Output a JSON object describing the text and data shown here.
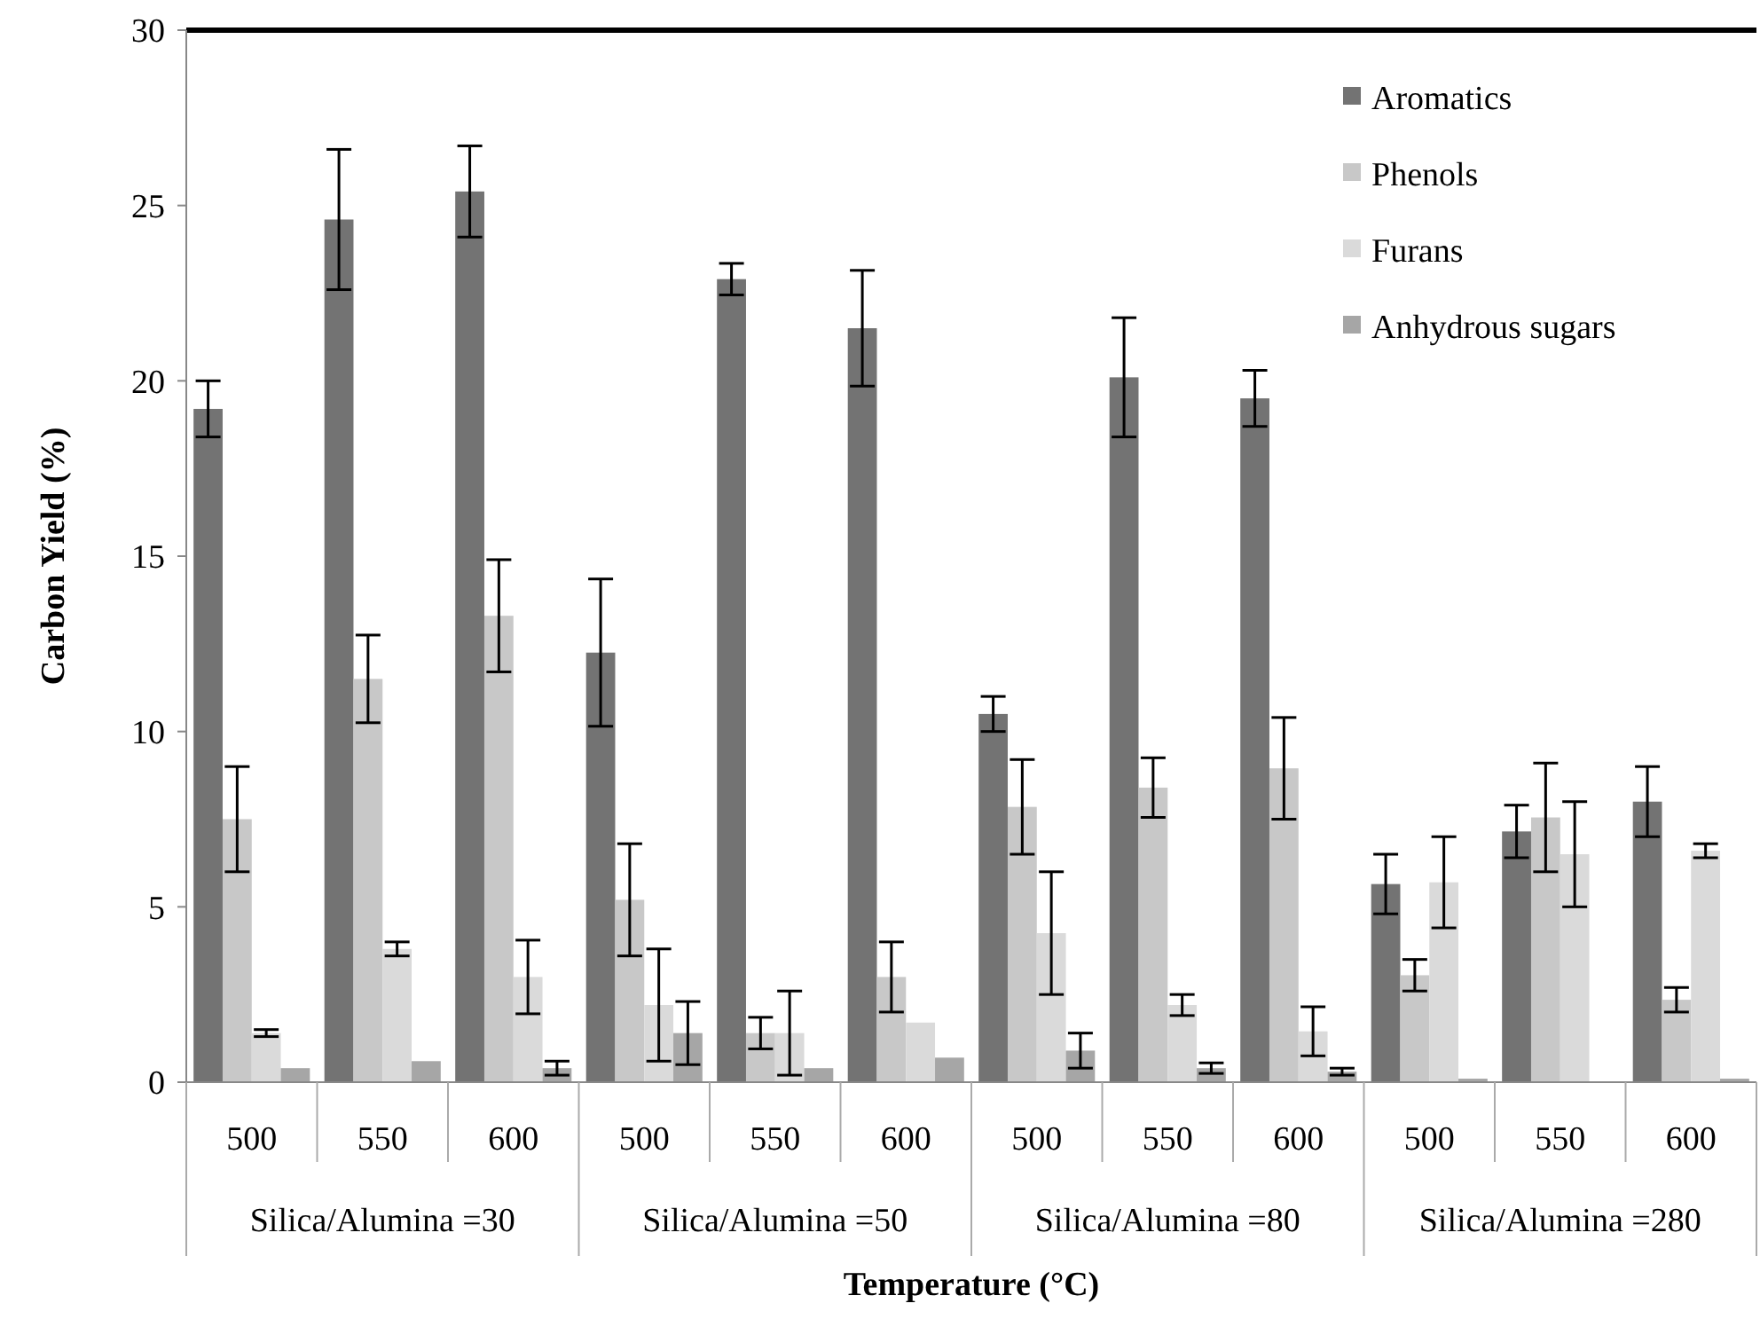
{
  "chart_data": {
    "type": "bar",
    "xlabel": "Temperature (°C)",
    "ylabel": "Carbon Yield (%)",
    "categories": [
      "500",
      "550",
      "600",
      "500",
      "550",
      "600",
      "500",
      "550",
      "600",
      "500",
      "550",
      "600"
    ],
    "annotations": [
      "Silica/Alumina =30",
      "Silica/Alumina =50",
      "Silica/Alumina =80",
      "Silica/Alumina =280"
    ],
    "series": [
      {
        "name": "Aromatics",
        "color": "#737373",
        "values": [
          19.2,
          24.6,
          25.4,
          12.25,
          22.9,
          21.5,
          10.5,
          20.1,
          19.5,
          5.65,
          7.15,
          8.0
        ],
        "errors": [
          0.8,
          2.0,
          1.3,
          2.1,
          0.45,
          1.65,
          0.5,
          1.7,
          0.8,
          0.85,
          0.75,
          1.0
        ]
      },
      {
        "name": "Phenols",
        "color": "#c8c8c8",
        "values": [
          7.5,
          11.5,
          13.3,
          5.2,
          1.4,
          3.0,
          7.85,
          8.4,
          8.95,
          3.05,
          7.55,
          2.35
        ],
        "errors": [
          1.5,
          1.25,
          1.6,
          1.6,
          0.45,
          1.0,
          1.35,
          0.85,
          1.45,
          0.45,
          1.55,
          0.35
        ]
      },
      {
        "name": "Furans",
        "color": "#dadada",
        "values": [
          1.4,
          3.8,
          3.0,
          2.2,
          1.4,
          1.7,
          4.25,
          2.2,
          1.45,
          5.7,
          6.5,
          6.6
        ],
        "errors": [
          0.1,
          0.2,
          1.05,
          1.6,
          1.2,
          null,
          1.75,
          0.3,
          0.7,
          1.3,
          1.5,
          0.2
        ]
      },
      {
        "name": "Anhydrous sugars",
        "color": "#a6a6a6",
        "values": [
          0.4,
          0.6,
          0.4,
          1.4,
          0.4,
          0.7,
          0.9,
          0.4,
          0.3,
          0.1,
          null,
          0.1
        ],
        "errors": [
          null,
          null,
          0.2,
          0.9,
          null,
          null,
          0.5,
          0.15,
          0.1,
          null,
          null,
          null
        ]
      }
    ],
    "ylim": [
      0,
      30
    ],
    "yticks": [
      0,
      5,
      10,
      15,
      20,
      25,
      30
    ],
    "grid": false,
    "legend": "top right"
  }
}
